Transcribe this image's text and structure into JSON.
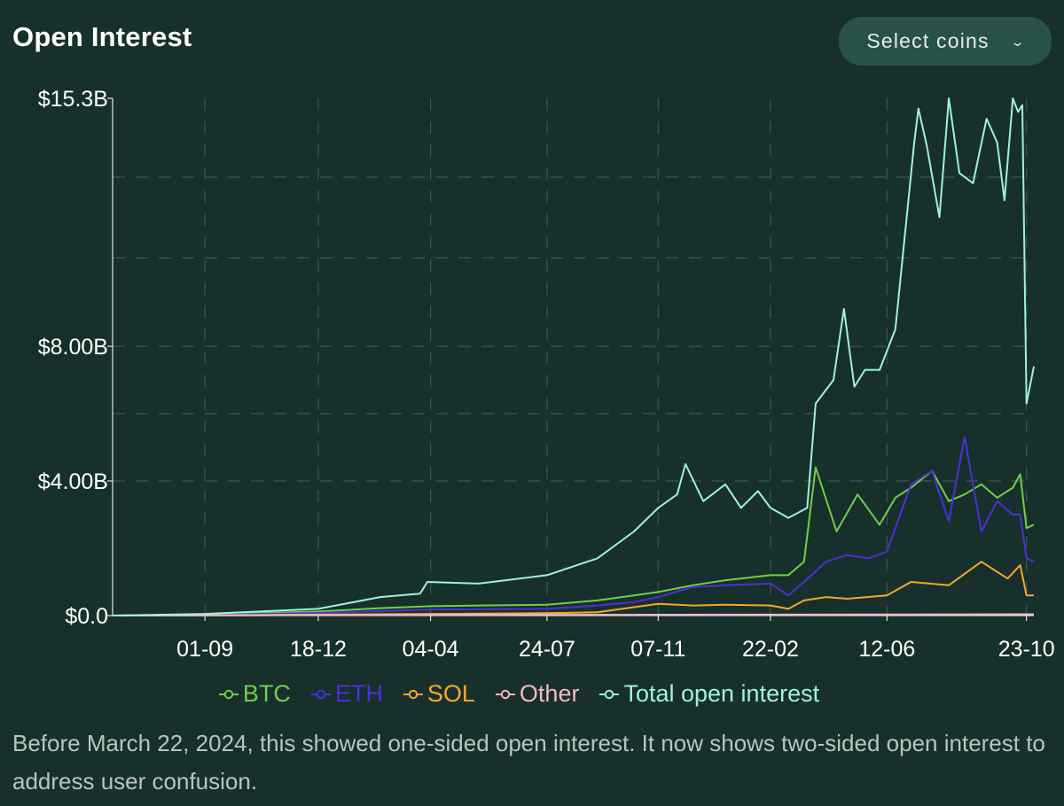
{
  "header": {
    "title": "Open Interest",
    "select_label": "Select coins"
  },
  "footnote": "Before March 22, 2024, this showed one-sided open interest. It now shows two-sided open interest to address user confusion.",
  "chart_data": {
    "type": "line",
    "title": "Open Interest",
    "xlabel": "",
    "ylabel": "",
    "y_ticks": [
      {
        "value": 0,
        "label": "$0.0"
      },
      {
        "value": 4.0,
        "label": "$4.00B"
      },
      {
        "value": 8.0,
        "label": "$8.00B"
      },
      {
        "value": 15.3,
        "label": "$15.3B"
      }
    ],
    "y_scale": "piecewise-linear",
    "ylim": [
      0,
      15.3
    ],
    "x_ticks": [
      "01-09",
      "18-12",
      "04-04",
      "24-07",
      "07-11",
      "22-02",
      "12-06",
      "23-10"
    ],
    "x_tick_dates": [
      "2022-09-01",
      "2022-12-18",
      "2023-04-04",
      "2023-07-24",
      "2023-11-07",
      "2024-02-22",
      "2024-06-12",
      "2024-10-23"
    ],
    "xlim": [
      "2022-06-05",
      "2024-10-30"
    ],
    "grid": true,
    "legend_position": "bottom",
    "series": [
      {
        "name": "BTC",
        "color": "#6fcf48",
        "x": [
          "2022-06-05",
          "2022-09-01",
          "2022-12-18",
          "2023-02-15",
          "2023-04-04",
          "2023-05-20",
          "2023-07-24",
          "2023-09-10",
          "2023-10-15",
          "2023-11-07",
          "2023-12-10",
          "2024-01-10",
          "2024-02-22",
          "2024-03-10",
          "2024-03-25",
          "2024-04-05",
          "2024-04-25",
          "2024-05-15",
          "2024-06-05",
          "2024-06-20",
          "2024-07-05",
          "2024-07-25",
          "2024-08-10",
          "2024-08-25",
          "2024-09-10",
          "2024-09-25",
          "2024-10-10",
          "2024-10-17",
          "2024-10-23",
          "2024-10-30"
        ],
        "y": [
          0.0,
          0.03,
          0.12,
          0.22,
          0.28,
          0.3,
          0.32,
          0.45,
          0.6,
          0.7,
          0.9,
          1.05,
          1.2,
          1.2,
          1.6,
          4.4,
          2.5,
          3.6,
          2.7,
          3.5,
          3.8,
          4.3,
          3.4,
          3.6,
          3.9,
          3.5,
          3.8,
          4.2,
          2.6,
          2.7
        ]
      },
      {
        "name": "ETH",
        "color": "#4c2fd6",
        "x": [
          "2022-06-05",
          "2022-09-01",
          "2022-12-18",
          "2023-04-04",
          "2023-07-24",
          "2023-09-10",
          "2023-10-15",
          "2023-11-07",
          "2023-12-10",
          "2024-01-10",
          "2024-02-22",
          "2024-03-10",
          "2024-03-25",
          "2024-04-15",
          "2024-05-05",
          "2024-05-25",
          "2024-06-12",
          "2024-07-05",
          "2024-07-25",
          "2024-08-10",
          "2024-08-25",
          "2024-09-10",
          "2024-09-25",
          "2024-10-10",
          "2024-10-17",
          "2024-10-23",
          "2024-10-30"
        ],
        "y": [
          0.0,
          0.02,
          0.08,
          0.18,
          0.2,
          0.3,
          0.4,
          0.55,
          0.85,
          0.9,
          0.95,
          0.6,
          1.0,
          1.6,
          1.8,
          1.7,
          1.9,
          3.9,
          4.3,
          2.8,
          5.3,
          2.5,
          3.4,
          3.0,
          3.0,
          1.7,
          1.6
        ]
      },
      {
        "name": "SOL",
        "color": "#f4a72e",
        "x": [
          "2022-06-05",
          "2022-09-01",
          "2022-12-18",
          "2023-04-04",
          "2023-07-24",
          "2023-09-10",
          "2023-10-15",
          "2023-11-07",
          "2023-12-10",
          "2024-01-10",
          "2024-02-22",
          "2024-03-10",
          "2024-03-25",
          "2024-04-15",
          "2024-05-05",
          "2024-06-12",
          "2024-07-05",
          "2024-08-10",
          "2024-09-10",
          "2024-10-05",
          "2024-10-17",
          "2024-10-23",
          "2024-10-30"
        ],
        "y": [
          0.0,
          0.01,
          0.03,
          0.05,
          0.07,
          0.1,
          0.25,
          0.35,
          0.3,
          0.32,
          0.3,
          0.2,
          0.45,
          0.55,
          0.5,
          0.6,
          1.0,
          0.9,
          1.6,
          1.1,
          1.5,
          0.6,
          0.6
        ]
      },
      {
        "name": "Other",
        "color": "#f2b8c6",
        "x": [
          "2022-06-05",
          "2023-04-04",
          "2024-02-22",
          "2024-10-30"
        ],
        "y": [
          0.0,
          0.02,
          0.03,
          0.04
        ]
      },
      {
        "name": "Total open interest",
        "color": "#9ff2dc",
        "x": [
          "2022-06-05",
          "2022-09-01",
          "2022-12-18",
          "2023-02-15",
          "2023-03-25",
          "2023-04-01",
          "2023-05-20",
          "2023-07-24",
          "2023-09-10",
          "2023-10-15",
          "2023-11-07",
          "2023-11-25",
          "2023-12-03",
          "2023-12-20",
          "2024-01-10",
          "2024-01-25",
          "2024-02-10",
          "2024-02-22",
          "2024-03-10",
          "2024-03-28",
          "2024-04-05",
          "2024-04-22",
          "2024-05-02",
          "2024-05-12",
          "2024-05-22",
          "2024-06-05",
          "2024-06-20",
          "2024-07-08",
          "2024-07-12",
          "2024-07-20",
          "2024-08-01",
          "2024-08-10",
          "2024-08-20",
          "2024-09-02",
          "2024-09-15",
          "2024-09-25",
          "2024-10-02",
          "2024-10-10",
          "2024-10-15",
          "2024-10-19",
          "2024-10-23",
          "2024-10-30"
        ],
        "y": [
          0.0,
          0.05,
          0.2,
          0.55,
          0.65,
          1.0,
          0.95,
          1.2,
          1.7,
          2.5,
          3.2,
          3.6,
          4.5,
          3.4,
          3.9,
          3.2,
          3.7,
          3.2,
          2.9,
          3.2,
          6.3,
          7.0,
          9.1,
          6.8,
          7.3,
          7.3,
          8.5,
          14.0,
          15.0,
          13.9,
          11.8,
          15.3,
          13.1,
          12.8,
          14.7,
          14.0,
          12.3,
          15.3,
          14.9,
          15.1,
          6.3,
          7.4
        ]
      }
    ]
  }
}
